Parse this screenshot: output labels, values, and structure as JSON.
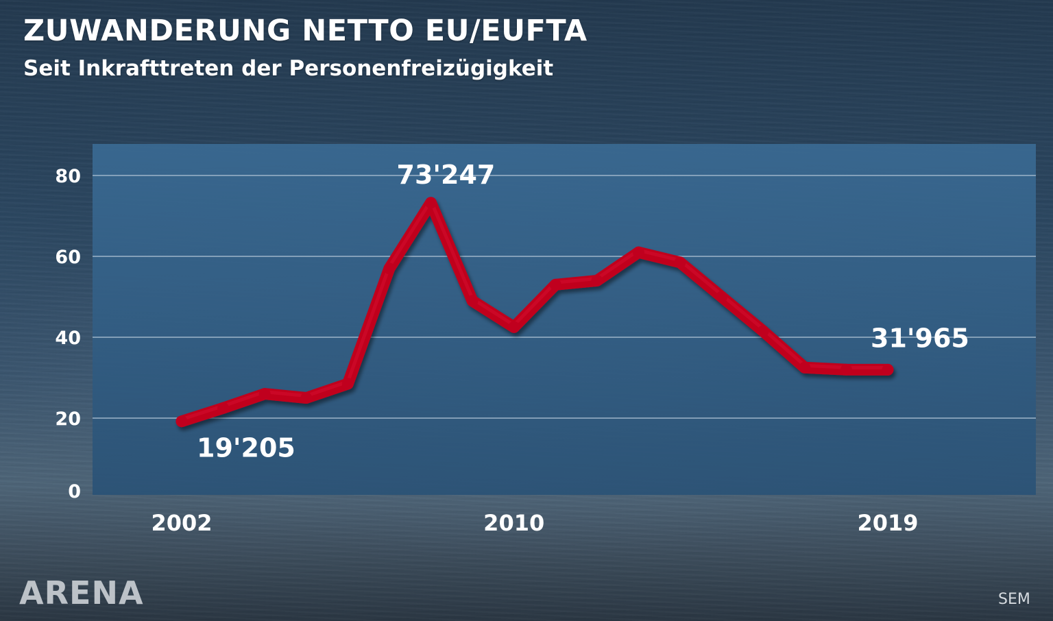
{
  "header": {
    "title": "ZUWANDERUNG NETTO EU/EUFTA",
    "subtitle": "Seit Inkrafttreten der Personenfreizügigkeit"
  },
  "footer": {
    "logo": "ARENA",
    "source": "SEM"
  },
  "colors": {
    "line": "#c0001e",
    "plot_background": "#2f5a7e",
    "gridline": "#9fb6c9",
    "text": "#ffffff"
  },
  "chart_data": {
    "type": "line",
    "title": "ZUWANDERUNG NETTO EU/EUFTA",
    "subtitle": "Seit Inkrafttreten der Personenfreizügigkeit",
    "xlabel": "",
    "ylabel": "",
    "x": [
      2002,
      2003,
      2004,
      2005,
      2006,
      2007,
      2008,
      2009,
      2010,
      2011,
      2012,
      2013,
      2014,
      2015,
      2016,
      2017,
      2018,
      2019
    ],
    "series": [
      {
        "values": [
          19.205,
          22.5,
          26,
          25,
          28.5,
          57,
          73.247,
          49,
          42.5,
          53,
          54,
          61,
          58.5,
          50,
          41.5,
          32.5,
          32,
          31.965
        ]
      }
    ],
    "x_ticks": [
      "2002",
      "2010",
      "2019"
    ],
    "x_tick_values": [
      2002,
      2010,
      2019
    ],
    "y_ticks": [
      "0",
      "20",
      "40",
      "60",
      "80"
    ],
    "y_tick_values": [
      0,
      20,
      40,
      60,
      80
    ],
    "ylim": [
      0,
      80
    ],
    "xlim": [
      2002,
      2019
    ],
    "grid": true,
    "annotations": [
      {
        "text": "19'205",
        "x": 2002,
        "y": 19.205,
        "placement": "below-right"
      },
      {
        "text": "73'247",
        "x": 2008,
        "y": 73.247,
        "placement": "above"
      },
      {
        "text": "31'965",
        "x": 2019,
        "y": 31.965,
        "placement": "above-right"
      }
    ]
  }
}
